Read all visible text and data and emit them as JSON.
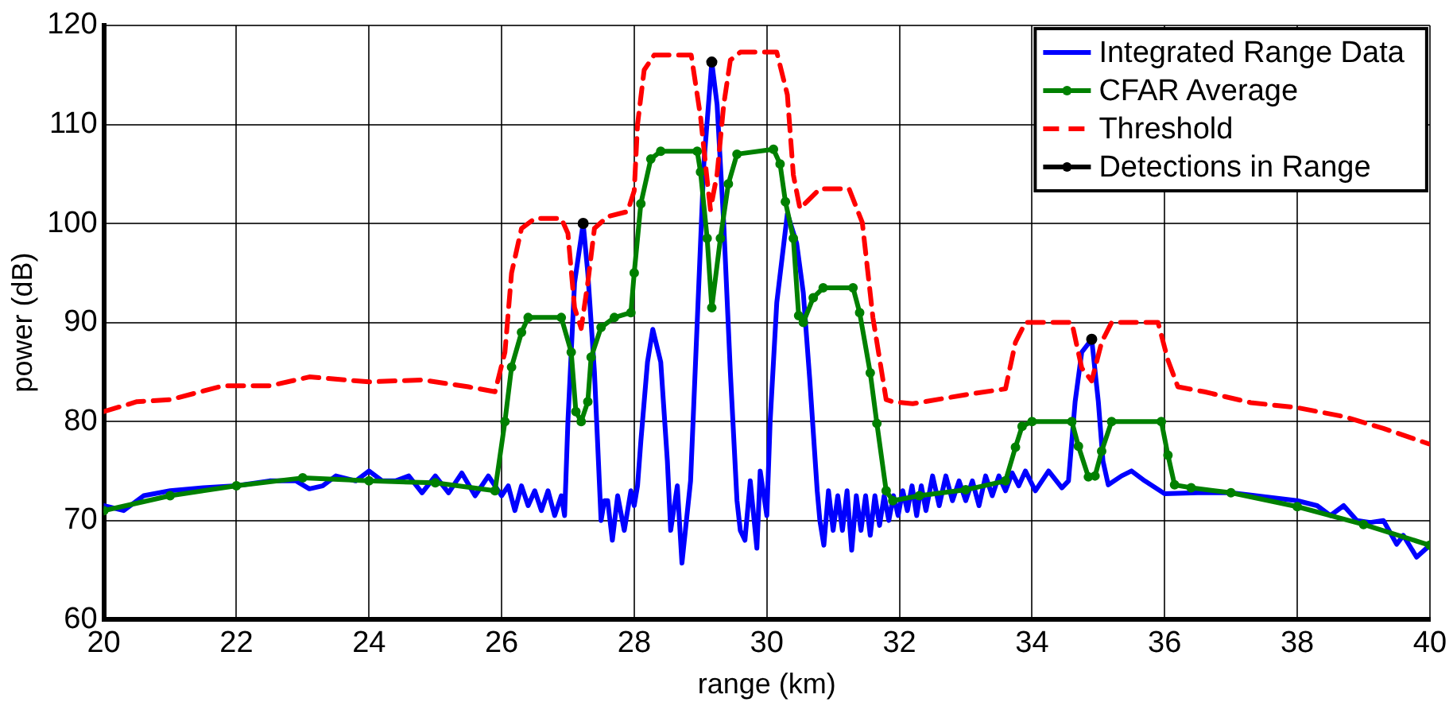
{
  "chart_data": {
    "type": "line",
    "xlabel": "range (km)",
    "ylabel": "power (dB)",
    "xlim": [
      20,
      40
    ],
    "xticks": [
      20,
      22,
      24,
      26,
      28,
      30,
      32,
      34,
      36,
      38,
      40
    ],
    "ylim": [
      60,
      120
    ],
    "yticks": [
      60,
      70,
      80,
      90,
      100,
      110,
      120
    ],
    "grid": true,
    "legend": "top right",
    "series": [
      {
        "name": "Integrated Range Data",
        "color": "#0000ff",
        "marker": "none",
        "line_style": "solid",
        "x": [
          20,
          20.3,
          20.6,
          21,
          21.5,
          22,
          22.5,
          22.9,
          23.1,
          23.3,
          23.5,
          23.8,
          24,
          24.2,
          24.4,
          24.6,
          24.8,
          25,
          25.2,
          25.4,
          25.6,
          25.8,
          26,
          26.1,
          26.2,
          26.3,
          26.4,
          26.5,
          26.6,
          26.7,
          26.8,
          26.9,
          26.95,
          27,
          27.1,
          27.23,
          27.3,
          27.4,
          27.5,
          27.55,
          27.6,
          27.67,
          27.75,
          27.85,
          27.95,
          28,
          28.05,
          28.1,
          28.2,
          28.28,
          28.4,
          28.5,
          28.55,
          28.65,
          28.72,
          28.85,
          28.95,
          29.05,
          29.17,
          29.25,
          29.35,
          29.45,
          29.55,
          29.6,
          29.67,
          29.75,
          29.85,
          29.9,
          30,
          30.05,
          30.15,
          30.31,
          30.45,
          30.55,
          30.65,
          30.76,
          30.8,
          30.86,
          30.93,
          31,
          31.07,
          31.14,
          31.21,
          31.28,
          31.35,
          31.42,
          31.49,
          31.56,
          31.63,
          31.7,
          31.77,
          31.84,
          31.91,
          31.98,
          32.05,
          32.12,
          32.19,
          32.26,
          32.33,
          32.4,
          32.5,
          32.6,
          32.7,
          32.8,
          32.9,
          33,
          33.1,
          33.2,
          33.3,
          33.4,
          33.5,
          33.6,
          33.7,
          33.8,
          33.9,
          34.05,
          34.25,
          34.45,
          34.55,
          34.65,
          34.75,
          34.9,
          35,
          35.07,
          35.15,
          35.35,
          35.5,
          35.7,
          36,
          36.5,
          37,
          37.5,
          38,
          38.3,
          38.5,
          38.7,
          38.9,
          39.1,
          39.3,
          39.5,
          39.6,
          39.8,
          40
        ],
        "values": [
          71.5,
          71,
          72.5,
          73,
          73.3,
          73.5,
          74,
          74,
          73.2,
          73.5,
          74.5,
          74,
          75,
          74,
          74,
          74.5,
          72.8,
          74.5,
          72.8,
          74.8,
          72.5,
          74.5,
          72.5,
          73.5,
          71,
          73.5,
          71.5,
          73,
          71,
          73,
          70.5,
          72.5,
          70.5,
          80,
          94,
          100,
          95,
          85,
          70,
          72,
          72,
          68,
          72.5,
          69,
          73,
          71.5,
          73.5,
          78,
          86,
          89.3,
          86,
          76,
          69,
          73.5,
          65.7,
          74,
          90,
          106,
          116.3,
          112,
          100,
          85,
          72,
          69,
          68,
          74,
          67.2,
          75,
          70.5,
          80,
          92,
          101,
          98,
          93,
          84,
          73,
          70,
          67.5,
          73,
          69,
          72.5,
          69,
          73,
          67,
          72.5,
          69,
          72.5,
          68.5,
          72.5,
          69.5,
          72.5,
          70,
          72.5,
          70.5,
          73,
          71,
          73.5,
          70.5,
          73.5,
          71,
          74.5,
          71.5,
          74.5,
          72,
          74,
          72,
          74,
          71.5,
          74.5,
          72.5,
          74.5,
          73,
          74.8,
          73.5,
          75,
          73,
          75,
          73.3,
          74,
          82,
          87,
          88.3,
          82,
          76,
          73.6,
          74.5,
          75,
          74,
          72.7,
          72.8,
          72.8,
          72.4,
          72,
          71.5,
          70.5,
          71.5,
          70,
          69.8,
          70,
          67.6,
          68.5,
          66.3,
          67.5
        ]
      },
      {
        "name": "CFAR Average",
        "color": "#008000",
        "marker": "circle",
        "line_style": "solid",
        "x": [
          20,
          21,
          22,
          23,
          24,
          25,
          25.9,
          26.05,
          26.15,
          26.3,
          26.4,
          26.9,
          27.05,
          27.12,
          27.2,
          27.3,
          27.35,
          27.5,
          27.7,
          27.95,
          28,
          28.1,
          28.25,
          28.4,
          28.95,
          29,
          29.1,
          29.17,
          29.3,
          29.42,
          29.55,
          30.1,
          30.2,
          30.28,
          30.4,
          30.48,
          30.55,
          30.7,
          30.85,
          31.3,
          31.4,
          31.56,
          31.66,
          31.8,
          31.9,
          32.3,
          33,
          33.6,
          33.75,
          33.85,
          34,
          34.6,
          34.7,
          34.85,
          34.95,
          35.05,
          35.2,
          35.95,
          36.05,
          36.15,
          36.4,
          37,
          38,
          39,
          40
        ],
        "values": [
          71,
          72.5,
          73.5,
          74.3,
          74,
          73.8,
          73,
          80,
          85.5,
          89,
          90.5,
          90.5,
          87,
          81,
          80,
          82,
          86.5,
          89.5,
          90.5,
          91,
          95,
          102,
          106.5,
          107.3,
          107.3,
          105.2,
          98.5,
          91.5,
          98.5,
          104,
          107,
          107.5,
          106,
          102.2,
          98.5,
          90.7,
          90,
          92.5,
          93.5,
          93.5,
          91,
          84.9,
          79.8,
          73,
          72,
          72.5,
          73.1,
          74,
          77.4,
          79.5,
          80,
          80,
          77.5,
          74.4,
          74.5,
          77,
          80,
          80,
          76.6,
          73.6,
          73.3,
          72.8,
          71.4,
          69.6,
          67.5
        ]
      },
      {
        "name": "Threshold",
        "color": "#ff0000",
        "marker": "none",
        "line_style": "dashed",
        "x": [
          20,
          20.5,
          21,
          21.8,
          22.5,
          23.1,
          24,
          24.8,
          25.5,
          25.9,
          26.05,
          26.15,
          26.3,
          26.5,
          26.9,
          27,
          27.1,
          27.2,
          27.3,
          27.4,
          27.6,
          27.9,
          28,
          28.05,
          28.15,
          28.3,
          28.86,
          29,
          29.1,
          29.15,
          29.25,
          29.35,
          29.45,
          29.6,
          30.15,
          30.31,
          30.4,
          30.5,
          30.65,
          30.8,
          31.24,
          31.44,
          31.6,
          31.8,
          31.9,
          32.2,
          33,
          33.6,
          33.75,
          33.9,
          34.6,
          34.75,
          34.9,
          35.05,
          35.2,
          35.9,
          36.05,
          36.2,
          36.6,
          37.3,
          38,
          38.7,
          39.3,
          40
        ],
        "values": [
          81,
          82,
          82.2,
          83.6,
          83.6,
          84.5,
          84,
          84.2,
          83.5,
          83,
          87,
          95,
          99.5,
          100.5,
          100.5,
          99,
          91.5,
          89.4,
          94,
          99.5,
          100.7,
          101.2,
          103.3,
          110,
          115.5,
          117,
          117,
          110.8,
          104.4,
          101.4,
          105,
          112,
          116.5,
          117.3,
          117.3,
          113,
          104.9,
          101.5,
          102.5,
          103.5,
          103.5,
          100.1,
          90.5,
          82.2,
          82,
          81.8,
          82.7,
          83.3,
          88,
          90,
          90,
          85.4,
          84.1,
          88,
          90,
          90,
          86.2,
          83.5,
          83,
          81.9,
          81.4,
          80.5,
          79.3,
          77.7
        ]
      },
      {
        "name": "Detections in Range",
        "color": "#000000",
        "type": "scatter",
        "marker": "circle",
        "x": [
          27.23,
          29.17,
          34.9
        ],
        "values": [
          100,
          116.3,
          88.3
        ]
      }
    ]
  }
}
